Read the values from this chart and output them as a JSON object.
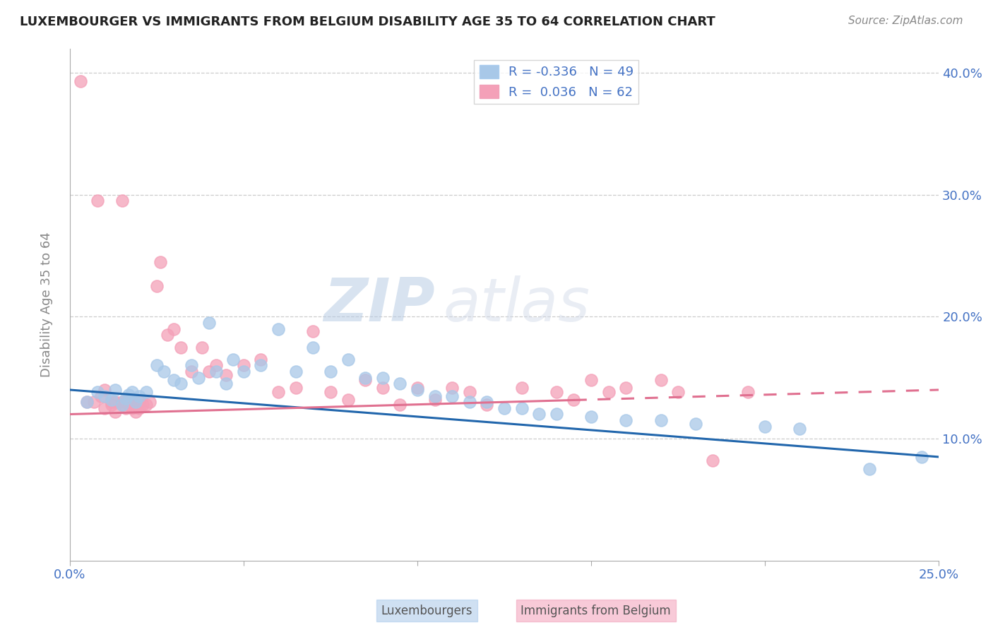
{
  "title": "LUXEMBOURGER VS IMMIGRANTS FROM BELGIUM DISABILITY AGE 35 TO 64 CORRELATION CHART",
  "source": "Source: ZipAtlas.com",
  "ylabel": "Disability Age 35 to 64",
  "xlim": [
    0.0,
    0.25
  ],
  "ylim": [
    0.0,
    0.42
  ],
  "legend_r1": "R = -0.336",
  "legend_n1": "N = 49",
  "legend_r2": "R =  0.036",
  "legend_n2": "N = 62",
  "blue_color": "#a8c8e8",
  "pink_color": "#f4a0b8",
  "blue_line_color": "#2166ac",
  "pink_line_color": "#e07090",
  "watermark_zip": "ZIP",
  "watermark_atlas": "atlas",
  "blue_scatter_x": [
    0.005,
    0.008,
    0.01,
    0.012,
    0.013,
    0.015,
    0.016,
    0.017,
    0.018,
    0.019,
    0.02,
    0.022,
    0.025,
    0.027,
    0.03,
    0.032,
    0.035,
    0.037,
    0.04,
    0.042,
    0.045,
    0.047,
    0.05,
    0.055,
    0.06,
    0.065,
    0.07,
    0.075,
    0.08,
    0.085,
    0.09,
    0.095,
    0.1,
    0.105,
    0.11,
    0.115,
    0.12,
    0.125,
    0.13,
    0.135,
    0.14,
    0.15,
    0.16,
    0.17,
    0.18,
    0.2,
    0.21,
    0.23,
    0.245
  ],
  "blue_scatter_y": [
    0.13,
    0.138,
    0.135,
    0.132,
    0.14,
    0.128,
    0.133,
    0.136,
    0.138,
    0.13,
    0.135,
    0.138,
    0.16,
    0.155,
    0.148,
    0.145,
    0.16,
    0.15,
    0.195,
    0.155,
    0.145,
    0.165,
    0.155,
    0.16,
    0.19,
    0.155,
    0.175,
    0.155,
    0.165,
    0.15,
    0.15,
    0.145,
    0.14,
    0.135,
    0.135,
    0.13,
    0.13,
    0.125,
    0.125,
    0.12,
    0.12,
    0.118,
    0.115,
    0.115,
    0.112,
    0.11,
    0.108,
    0.075,
    0.085
  ],
  "pink_scatter_x": [
    0.003,
    0.005,
    0.007,
    0.008,
    0.009,
    0.01,
    0.01,
    0.012,
    0.012,
    0.013,
    0.013,
    0.015,
    0.015,
    0.015,
    0.016,
    0.016,
    0.017,
    0.017,
    0.018,
    0.018,
    0.019,
    0.019,
    0.02,
    0.02,
    0.021,
    0.022,
    0.023,
    0.025,
    0.026,
    0.028,
    0.03,
    0.032,
    0.035,
    0.038,
    0.04,
    0.042,
    0.045,
    0.05,
    0.055,
    0.06,
    0.065,
    0.07,
    0.075,
    0.08,
    0.085,
    0.09,
    0.095,
    0.1,
    0.105,
    0.11,
    0.115,
    0.12,
    0.13,
    0.14,
    0.145,
    0.15,
    0.155,
    0.16,
    0.17,
    0.175,
    0.185,
    0.195
  ],
  "pink_scatter_y": [
    0.393,
    0.13,
    0.13,
    0.295,
    0.135,
    0.14,
    0.125,
    0.13,
    0.128,
    0.13,
    0.122,
    0.295,
    0.13,
    0.128,
    0.13,
    0.125,
    0.13,
    0.128,
    0.13,
    0.125,
    0.128,
    0.122,
    0.125,
    0.13,
    0.128,
    0.128,
    0.13,
    0.225,
    0.245,
    0.185,
    0.19,
    0.175,
    0.155,
    0.175,
    0.155,
    0.16,
    0.152,
    0.16,
    0.165,
    0.138,
    0.142,
    0.188,
    0.138,
    0.132,
    0.148,
    0.142,
    0.128,
    0.142,
    0.132,
    0.142,
    0.138,
    0.128,
    0.142,
    0.138,
    0.132,
    0.148,
    0.138,
    0.142,
    0.148,
    0.138,
    0.082,
    0.138
  ],
  "blue_line_x0": 0.0,
  "blue_line_y0": 0.14,
  "blue_line_x1": 0.25,
  "blue_line_y1": 0.085,
  "pink_line_x0": 0.0,
  "pink_line_y0": 0.12,
  "pink_line_x1": 0.25,
  "pink_line_y1": 0.14,
  "pink_line_solid_end": 0.145,
  "pink_line_dash_start": 0.145
}
